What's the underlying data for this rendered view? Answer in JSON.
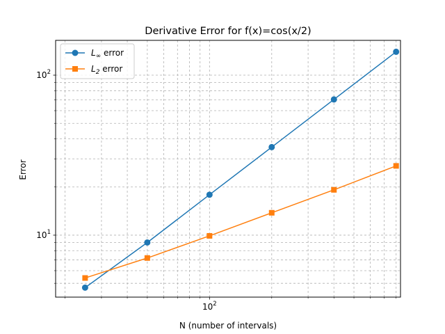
{
  "chart_data": {
    "type": "line",
    "title": "Derivative Error for f(x)=cos(x/2)",
    "xlabel": "N (number of intervals)",
    "ylabel": "Error",
    "xscale": "log",
    "yscale": "log",
    "xlim": [
      18,
      840
    ],
    "ylim": [
      4.1,
      165
    ],
    "grid": true,
    "legend_position": "top-left",
    "x_tick_labels": [
      {
        "value": 100,
        "base": "10",
        "exponent": "2"
      }
    ],
    "y_tick_labels": [
      {
        "value": 10,
        "base": "10",
        "exponent": "1"
      },
      {
        "value": 100,
        "base": "10",
        "exponent": "2"
      }
    ],
    "x": [
      25,
      50,
      100,
      200,
      400,
      800
    ],
    "series": [
      {
        "name_main": "L",
        "name_sub": "∞",
        "name_suffix": " error",
        "color": "#1f77b4",
        "marker": "circle",
        "values": [
          4.7,
          9.0,
          17.9,
          35.5,
          70.5,
          140.0
        ]
      },
      {
        "name_main": "L",
        "name_sub": "2",
        "name_suffix": " error",
        "color": "#ff7f0e",
        "marker": "square",
        "values": [
          5.4,
          7.2,
          9.9,
          13.8,
          19.2,
          27.1
        ]
      }
    ]
  }
}
